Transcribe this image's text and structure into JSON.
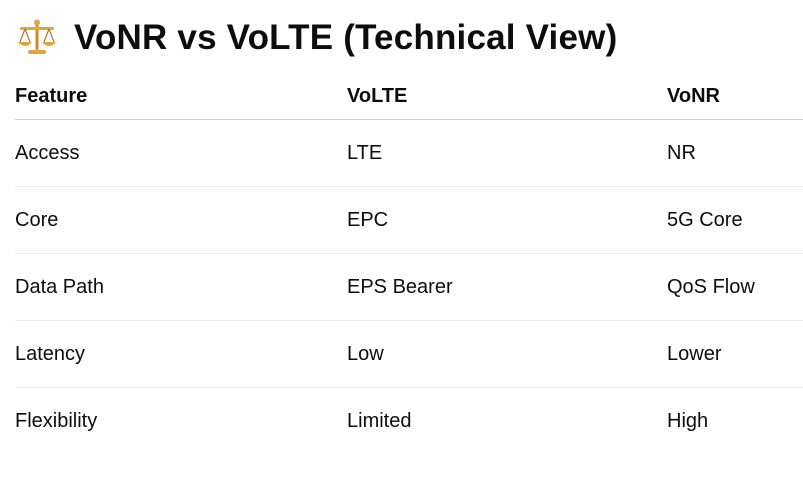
{
  "heading": {
    "icon": "balance-scale-icon",
    "text": "VoNR vs VoLTE (Technical View)"
  },
  "table": {
    "columns": [
      "Feature",
      "VoLTE",
      "VoNR"
    ],
    "rows": [
      [
        "Access",
        "LTE",
        "NR"
      ],
      [
        "Core",
        "EPC",
        "5G Core"
      ],
      [
        "Data Path",
        "EPS Bearer",
        "QoS Flow"
      ],
      [
        "Latency",
        "Low",
        "Lower"
      ],
      [
        "Flexibility",
        "Limited",
        "High"
      ]
    ]
  },
  "colors": {
    "text": "#0d0d0d",
    "header_rule": "#d0d0d0",
    "row_rule": "#ececec",
    "scale_gold": "#e0a63a"
  }
}
